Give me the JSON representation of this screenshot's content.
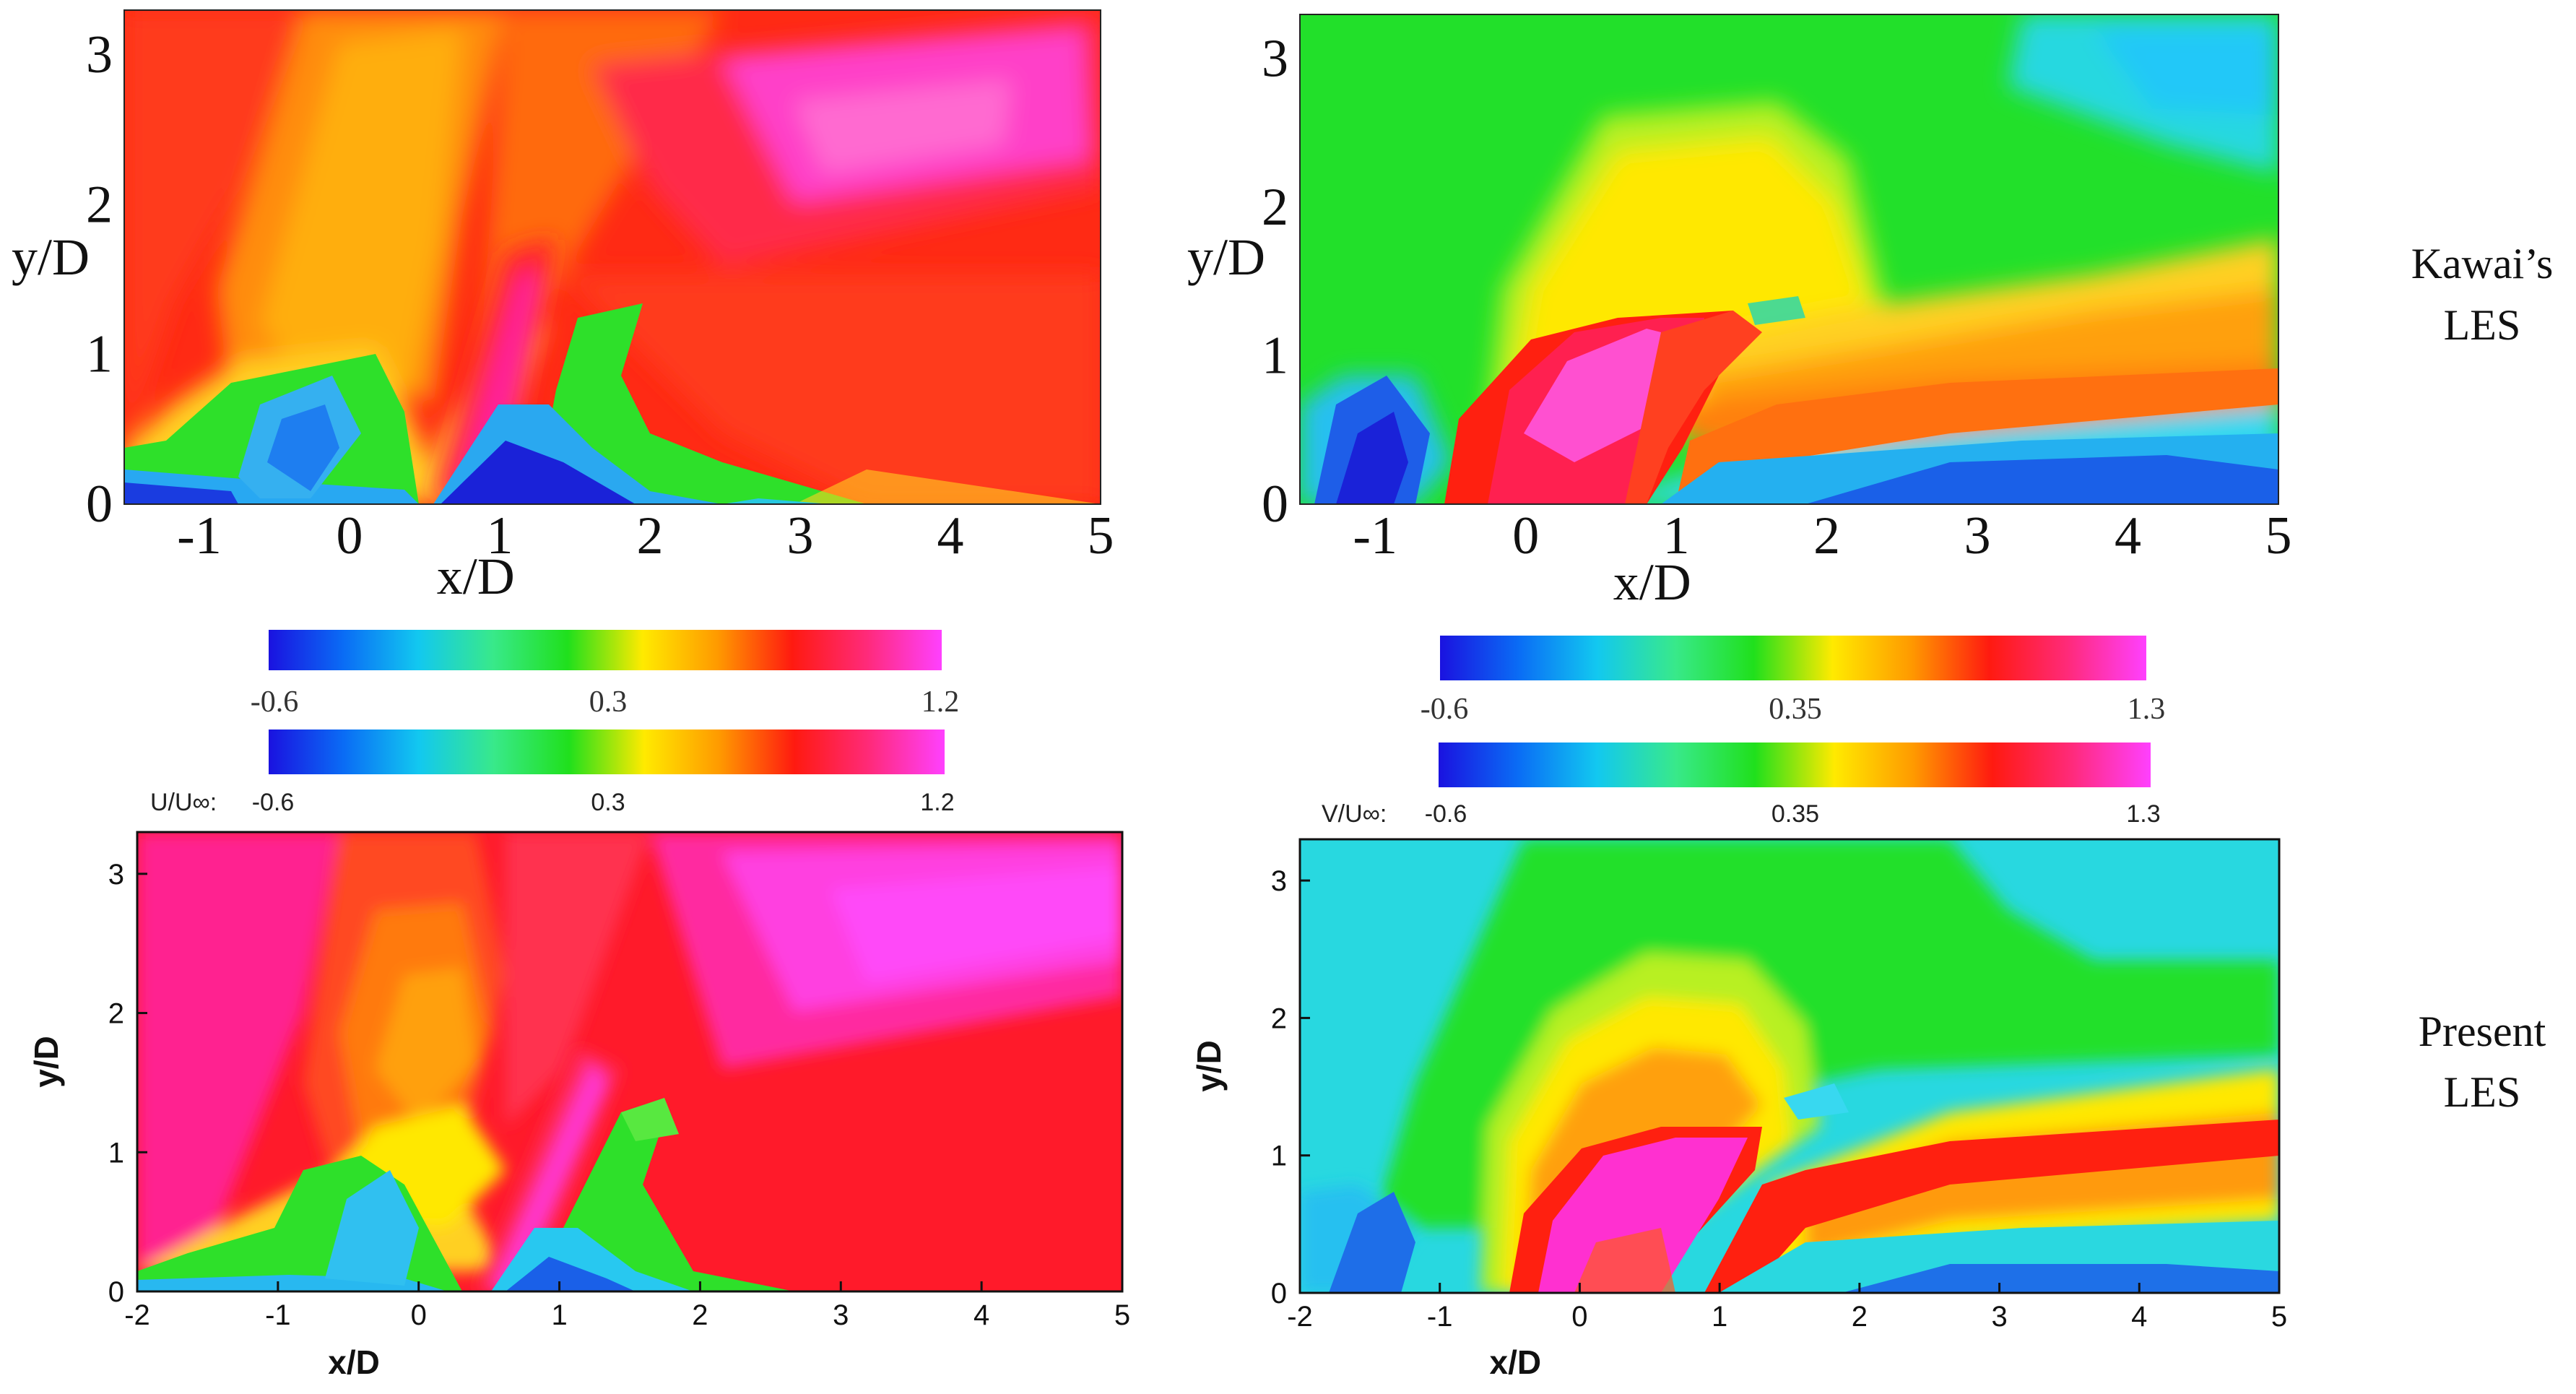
{
  "colormap_stops": [
    "#1a12e0",
    "#0a6cf5",
    "#12c8f0",
    "#38e98a",
    "#20e01c",
    "#ffea00",
    "#ff9a00",
    "#ff1a10",
    "#ff2a7a",
    "#ff40ff"
  ],
  "row_labels": {
    "top": [
      "Kawai’s",
      "LES"
    ],
    "bottom": [
      "Present",
      "LES"
    ]
  },
  "colorbars": [
    {
      "variable": "",
      "ticks": [
        "-0.6",
        "0.3",
        "1.2"
      ]
    },
    {
      "variable": "U/U∞:",
      "ticks": [
        "-0.6",
        "0.3",
        "1.2"
      ]
    },
    {
      "variable": "",
      "ticks": [
        "-0.6",
        "0.35",
        "1.3"
      ]
    },
    {
      "variable": "V/U∞:",
      "ticks": [
        "-0.6",
        "0.35",
        "1.3"
      ]
    }
  ],
  "chart_data": [
    {
      "type": "heatmap",
      "title": "",
      "row": "Kawai’s LES",
      "field": "U/U∞",
      "xlabel": "x/D",
      "ylabel": "y/D",
      "xlim": [
        -1.5,
        5
      ],
      "ylim": [
        0,
        3.3
      ],
      "xticks": [
        -1,
        0,
        1,
        2,
        3,
        4,
        5
      ],
      "yticks": [
        0,
        1,
        2,
        3
      ],
      "colorbar": {
        "min": -0.6,
        "mid": 0.3,
        "max": 1.2
      },
      "grid": false
    },
    {
      "type": "heatmap",
      "title": "",
      "row": "Kawai’s LES",
      "field": "V/U∞",
      "xlabel": "x/D",
      "ylabel": "y/D",
      "xlim": [
        -1.5,
        5
      ],
      "ylim": [
        0,
        3.3
      ],
      "xticks": [
        -1,
        0,
        1,
        2,
        3,
        4,
        5
      ],
      "yticks": [
        0,
        1,
        2,
        3
      ],
      "colorbar": {
        "min": -0.6,
        "mid": 0.35,
        "max": 1.3
      },
      "grid": false
    },
    {
      "type": "heatmap",
      "title": "",
      "row": "Present LES",
      "field": "U/U∞",
      "xlabel": "x/D",
      "ylabel": "y/D",
      "xlim": [
        -2,
        5
      ],
      "ylim": [
        0,
        3.3
      ],
      "xticks": [
        -2,
        -1,
        0,
        1,
        2,
        3,
        4,
        5
      ],
      "yticks": [
        0,
        1,
        2,
        3
      ],
      "colorbar": {
        "min": -0.6,
        "mid": 0.3,
        "max": 1.2
      },
      "grid": false
    },
    {
      "type": "heatmap",
      "title": "",
      "row": "Present LES",
      "field": "V/U∞",
      "xlabel": "x/D",
      "ylabel": "y/D",
      "xlim": [
        -2,
        5
      ],
      "ylim": [
        0,
        3.3
      ],
      "xticks": [
        -2,
        -1,
        0,
        1,
        2,
        3,
        4,
        5
      ],
      "yticks": [
        0,
        1,
        2,
        3
      ],
      "colorbar": {
        "min": -0.6,
        "mid": 0.35,
        "max": 1.3
      },
      "grid": false
    }
  ]
}
